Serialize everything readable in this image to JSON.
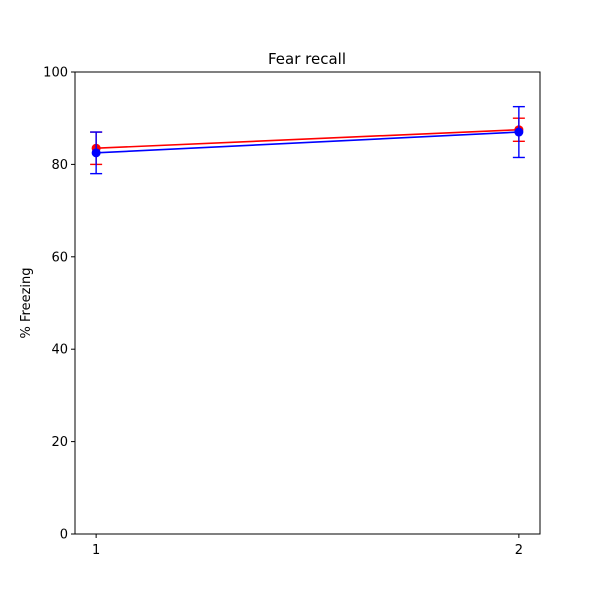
{
  "chart_data": {
    "type": "line",
    "title": "Fear recall",
    "xlabel": "",
    "ylabel": "% Freezing",
    "x": [
      1,
      2
    ],
    "x_ticks": [
      "1",
      "2"
    ],
    "y_ticks": [
      "0",
      "20",
      "40",
      "60",
      "80",
      "100"
    ],
    "ylim": [
      0,
      100
    ],
    "xlim": [
      0.95,
      2.05
    ],
    "grid": false,
    "series": [
      {
        "color": "#ff0000",
        "values": [
          83.5,
          87.5
        ],
        "errors": [
          3.5,
          2.5
        ],
        "z": 1
      },
      {
        "color": "#0000ff",
        "values": [
          82.5,
          87.0
        ],
        "errors": [
          4.5,
          5.5
        ],
        "z": 2
      }
    ]
  }
}
